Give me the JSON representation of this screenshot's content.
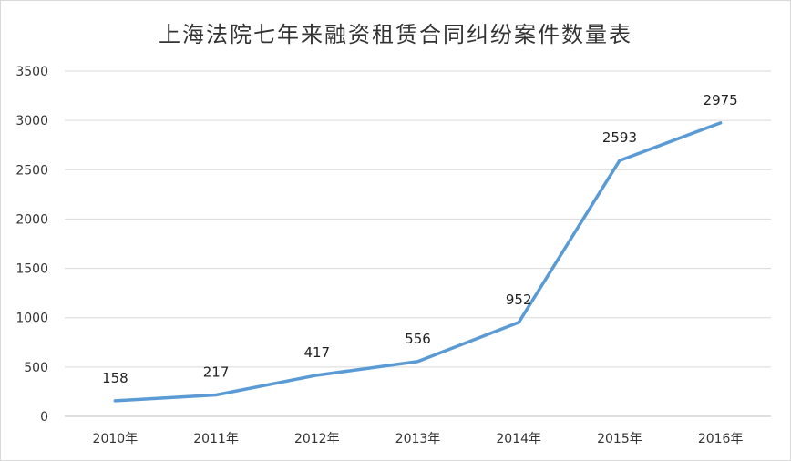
{
  "chart_data": {
    "type": "line",
    "title": "上海法院七年来融资租赁合同纠纷案件数量表",
    "categories": [
      "2010年",
      "2011年",
      "2012年",
      "2013年",
      "2014年",
      "2015年",
      "2016年"
    ],
    "series": [
      {
        "values": [
          158,
          217,
          417,
          556,
          952,
          2593,
          2975
        ]
      }
    ],
    "data_labels": [
      "158",
      "217",
      "417",
      "556",
      "952",
      "2593",
      "2975"
    ],
    "y_ticks": [
      "0",
      "500",
      "1000",
      "1500",
      "2000",
      "2500",
      "3000",
      "3500"
    ],
    "ylim": [
      0,
      3500
    ],
    "grid": true,
    "legend": "none",
    "colors": {
      "series": "#5b9bd5"
    }
  }
}
